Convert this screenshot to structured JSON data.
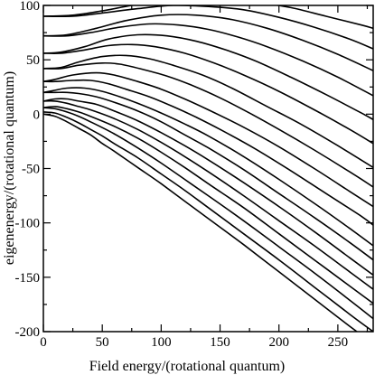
{
  "chart_data": {
    "type": "line",
    "xlabel": "Field energy/(rotational quantum)",
    "ylabel": "eigenenergy/(rotational quantum)",
    "xlim": [
      0,
      280
    ],
    "ylim": [
      -200,
      100
    ],
    "x_ticks": [
      0,
      50,
      100,
      150,
      200,
      250
    ],
    "y_ticks": [
      -200,
      -150,
      -100,
      -50,
      0,
      50,
      100
    ],
    "x_tick_labels": [
      "0",
      "50",
      "100",
      "150",
      "200",
      "250"
    ],
    "y_tick_labels": [
      "-200",
      "-150",
      "-100",
      "-50",
      "0",
      "50",
      "100"
    ],
    "grid": false,
    "legend": "none",
    "line_color": "#000000",
    "series": [
      {
        "x": [
          0,
          10,
          20,
          30,
          40,
          50,
          60,
          80,
          100,
          120,
          140,
          170,
          200,
          230,
          260,
          280
        ],
        "y": [
          0,
          -2,
          -7,
          -13,
          -19,
          -27,
          -34,
          -49,
          -64,
          -80,
          -96,
          -120,
          -145,
          -170,
          -195,
          -211
        ]
      },
      {
        "x": [
          0,
          10,
          20,
          30,
          40,
          50,
          60,
          80,
          100,
          120,
          140,
          170,
          200,
          230,
          260,
          280
        ],
        "y": [
          2,
          1,
          -3,
          -8,
          -14,
          -20,
          -27,
          -40,
          -55,
          -70,
          -86,
          -110,
          -134,
          -159,
          -184,
          -200
        ]
      },
      {
        "x": [
          0,
          10,
          20,
          30,
          40,
          60,
          80,
          100,
          120,
          140,
          170,
          200,
          230,
          260,
          280
        ],
        "y": [
          6,
          5,
          2,
          -2,
          -7,
          -18,
          -31,
          -45,
          -60,
          -75,
          -98,
          -122,
          -146,
          -171,
          -188
        ]
      },
      {
        "x": [
          0,
          10,
          20,
          30,
          40,
          60,
          80,
          100,
          120,
          140,
          170,
          200,
          230,
          260,
          280
        ],
        "y": [
          6,
          7,
          5,
          2,
          -2,
          -11,
          -22,
          -35,
          -49,
          -64,
          -86,
          -110,
          -134,
          -158,
          -174
        ]
      },
      {
        "x": [
          0,
          10,
          20,
          30,
          40,
          60,
          80,
          100,
          120,
          140,
          170,
          200,
          230,
          260,
          280
        ],
        "y": [
          12,
          12,
          10,
          7,
          4,
          -4,
          -14,
          -26,
          -39,
          -53,
          -75,
          -98,
          -121,
          -145,
          -161
        ]
      },
      {
        "x": [
          0,
          10,
          20,
          30,
          45,
          60,
          80,
          100,
          120,
          140,
          170,
          200,
          230,
          260,
          280
        ],
        "y": [
          12,
          14,
          14,
          12,
          9,
          3,
          -6,
          -17,
          -29,
          -42,
          -63,
          -85,
          -108,
          -132,
          -148
        ]
      },
      {
        "x": [
          0,
          10,
          20,
          30,
          45,
          60,
          80,
          100,
          120,
          140,
          170,
          200,
          230,
          260,
          280
        ],
        "y": [
          20,
          20,
          20,
          19,
          16,
          11,
          3,
          -7,
          -19,
          -31,
          -51,
          -73,
          -95,
          -118,
          -134
        ]
      },
      {
        "x": [
          0,
          10,
          20,
          35,
          50,
          65,
          80,
          100,
          120,
          140,
          170,
          200,
          230,
          260,
          280
        ],
        "y": [
          20,
          22,
          24,
          24,
          21,
          16,
          10,
          1,
          -9,
          -20,
          -39,
          -60,
          -82,
          -105,
          -121
        ]
      },
      {
        "x": [
          0,
          10,
          25,
          40,
          55,
          70,
          90,
          110,
          130,
          150,
          180,
          210,
          240,
          270,
          280
        ],
        "y": [
          30,
          30,
          31,
          31,
          28,
          23,
          16,
          7,
          -3,
          -14,
          -32,
          -52,
          -73,
          -94,
          -102
        ]
      },
      {
        "x": [
          0,
          10,
          25,
          45,
          60,
          80,
          100,
          120,
          140,
          170,
          200,
          230,
          260,
          280
        ],
        "y": [
          30,
          32,
          36,
          38,
          36,
          30,
          23,
          14,
          4,
          -12,
          -30,
          -50,
          -71,
          -85
        ]
      },
      {
        "x": [
          0,
          15,
          30,
          50,
          65,
          85,
          105,
          125,
          150,
          175,
          200,
          230,
          260,
          280
        ],
        "y": [
          42,
          42,
          45,
          47,
          46,
          41,
          35,
          27,
          15,
          1,
          -14,
          -33,
          -53,
          -67
        ]
      },
      {
        "x": [
          0,
          15,
          30,
          50,
          70,
          90,
          110,
          135,
          160,
          190,
          220,
          250,
          280
        ],
        "y": [
          42,
          43,
          48,
          53,
          54,
          51,
          45,
          36,
          24,
          7,
          -10,
          -29,
          -49
        ]
      },
      {
        "x": [
          0,
          15,
          35,
          55,
          75,
          95,
          120,
          145,
          170,
          200,
          230,
          260,
          280
        ],
        "y": [
          56,
          56,
          59,
          63,
          64,
          62,
          56,
          47,
          36,
          21,
          4,
          -14,
          -27
        ]
      },
      {
        "x": [
          0,
          15,
          35,
          55,
          80,
          105,
          130,
          155,
          180,
          210,
          240,
          270,
          280
        ],
        "y": [
          56,
          57,
          62,
          69,
          73,
          72,
          67,
          59,
          49,
          34,
          18,
          1,
          -5
        ]
      },
      {
        "x": [
          0,
          20,
          40,
          65,
          90,
          115,
          140,
          165,
          190,
          220,
          250,
          280
        ],
        "y": [
          72,
          72,
          75,
          80,
          83,
          82,
          78,
          71,
          62,
          49,
          34,
          17
        ]
      },
      {
        "x": [
          0,
          20,
          45,
          70,
          100,
          130,
          160,
          190,
          220,
          250,
          280
        ],
        "y": [
          72,
          73,
          79,
          86,
          91,
          91,
          87,
          79,
          68,
          55,
          40
        ]
      },
      {
        "x": [
          0,
          25,
          50,
          80,
          110,
          140,
          170,
          200,
          230,
          260,
          280
        ],
        "y": [
          90,
          90,
          93,
          97,
          100,
          99,
          96,
          89,
          80,
          69,
          60
        ]
      },
      {
        "x": [
          0,
          25,
          50,
          75,
          100,
          125,
          150,
          180,
          210,
          240,
          270,
          280
        ],
        "y": [
          90,
          91,
          95,
          100,
          104,
          106,
          106,
          103,
          98,
          90,
          82,
          79
        ]
      }
    ]
  }
}
